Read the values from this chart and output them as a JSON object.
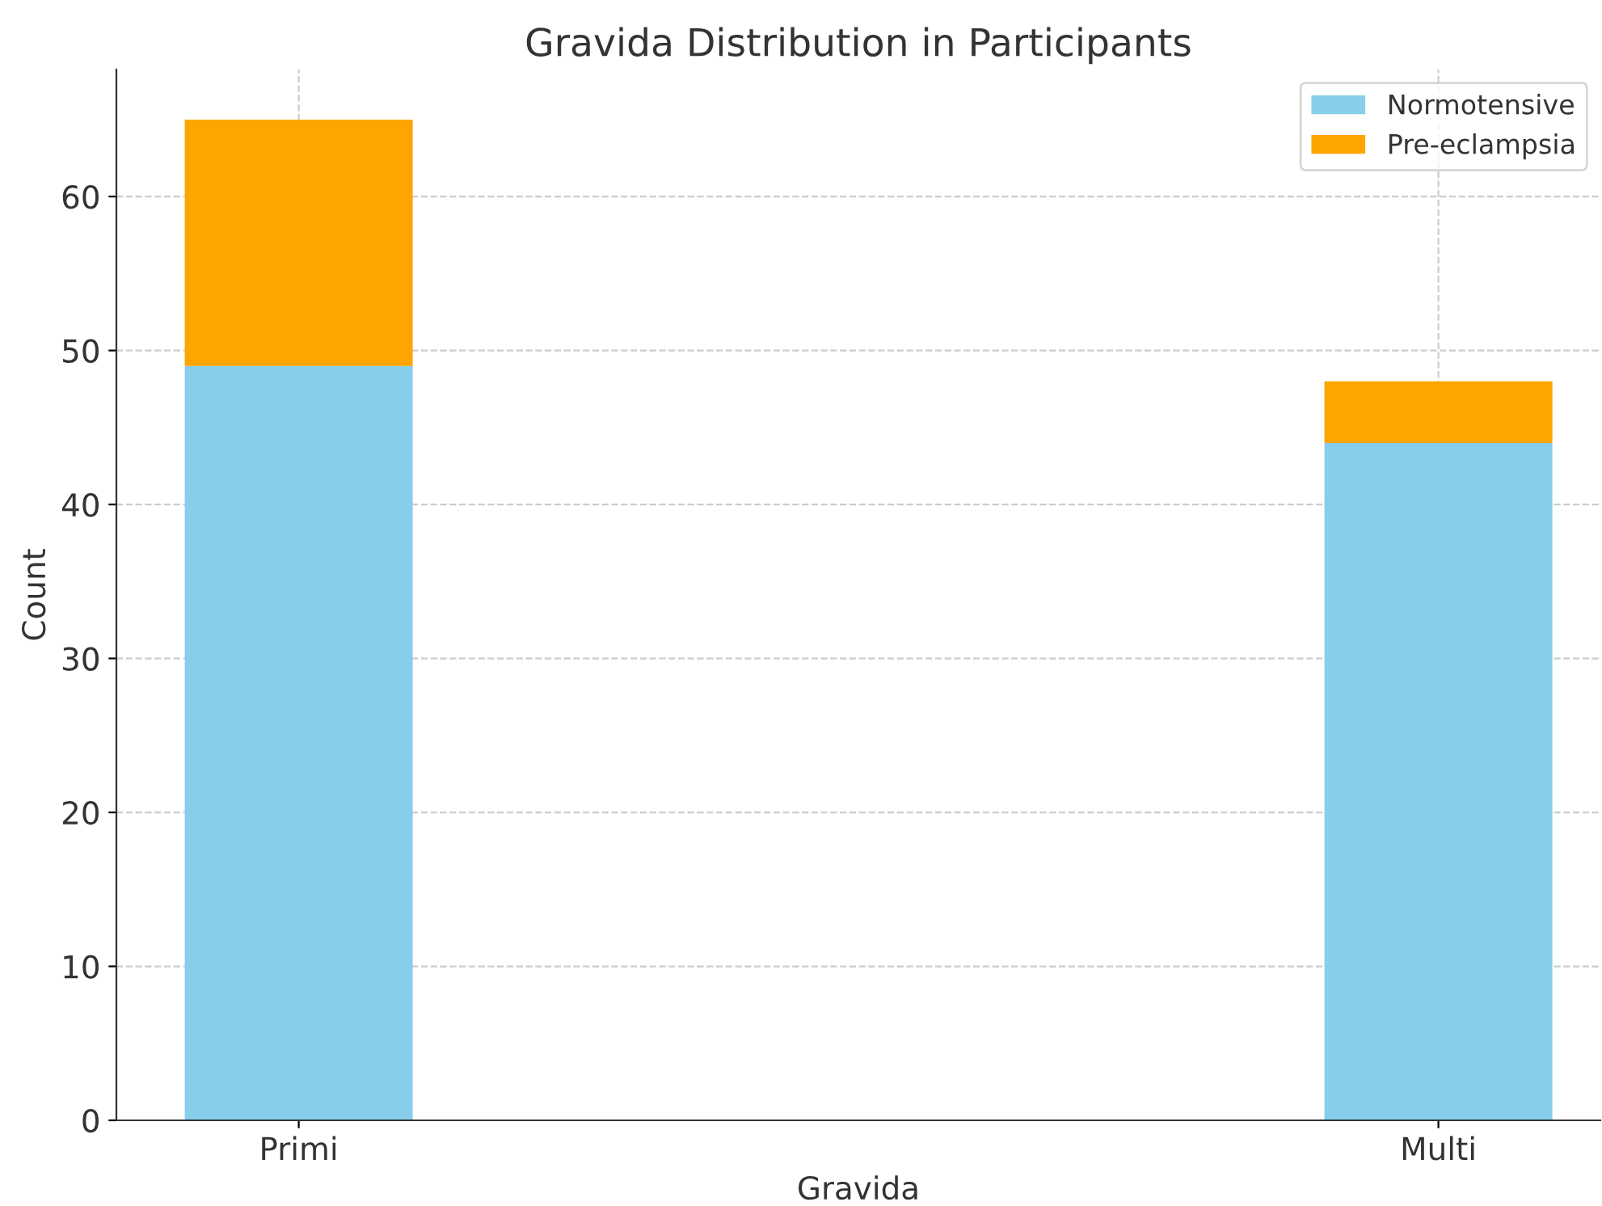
{
  "chart_data": {
    "type": "bar",
    "title": "Gravida Distribution in Participants",
    "xlabel": "Gravida",
    "ylabel": "Count",
    "categories": [
      "Primi",
      "Multi"
    ],
    "series": [
      {
        "name": "Normotensive",
        "color": "#87ceeb",
        "values": [
          49,
          44
        ]
      },
      {
        "name": "Pre-eclampsia",
        "color": "#ffa500",
        "values": [
          16,
          4
        ]
      }
    ],
    "stacked": true,
    "ylim": [
      0,
      68.25
    ],
    "yticks": [
      0,
      10,
      20,
      30,
      40,
      50,
      60
    ],
    "grid": true,
    "legend": "top right"
  }
}
